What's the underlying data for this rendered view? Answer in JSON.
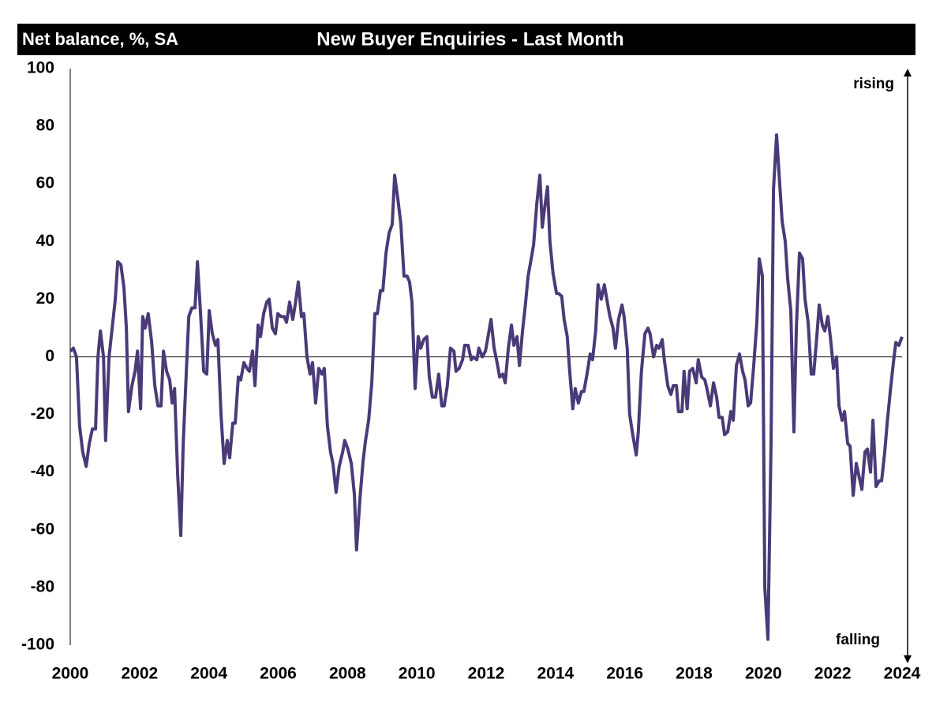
{
  "chart_data": {
    "type": "line",
    "title": "New Buyer Enquiries - Last Month",
    "subtitle": "Net balance, %, SA",
    "annotations": [
      "rising",
      "falling"
    ],
    "color": "#4b3a78",
    "xlim": [
      2000,
      2024
    ],
    "xticks": [
      2000,
      2002,
      2004,
      2006,
      2008,
      2010,
      2012,
      2014,
      2016,
      2018,
      2020,
      2022,
      2024
    ],
    "ylim": [
      -100,
      100
    ],
    "yticks": [
      -100,
      -80,
      -60,
      -40,
      -20,
      0,
      20,
      40,
      60,
      80,
      100
    ],
    "grid": false,
    "x": [
      2000.0,
      2000.09,
      2000.18,
      2000.27,
      2000.36,
      2000.46,
      2000.55,
      2000.64,
      2000.73,
      2000.8,
      2000.87,
      2000.96,
      2001.02,
      2001.12,
      2001.21,
      2001.3,
      2001.37,
      2001.46,
      2001.55,
      2001.62,
      2001.68,
      2001.78,
      2001.87,
      2001.94,
      2002.03,
      2002.09,
      2002.16,
      2002.25,
      2002.35,
      2002.44,
      2002.53,
      2002.62,
      2002.69,
      2002.78,
      2002.87,
      2002.94,
      2003.01,
      2003.1,
      2003.19,
      2003.26,
      2003.35,
      2003.42,
      2003.51,
      2003.6,
      2003.67,
      2003.76,
      2003.85,
      2003.94,
      2004.01,
      2004.1,
      2004.19,
      2004.26,
      2004.35,
      2004.44,
      2004.53,
      2004.6,
      2004.69,
      2004.76,
      2004.85,
      2004.92,
      2005.01,
      2005.1,
      2005.17,
      2005.26,
      2005.33,
      2005.42,
      2005.49,
      2005.58,
      2005.67,
      2005.74,
      2005.83,
      2005.92,
      2005.99,
      2006.08,
      2006.17,
      2006.24,
      2006.33,
      2006.42,
      2006.49,
      2006.58,
      2006.67,
      2006.74,
      2006.83,
      2006.92,
      2006.99,
      2007.08,
      2007.17,
      2007.26,
      2007.33,
      2007.42,
      2007.51,
      2007.58,
      2007.67,
      2007.76,
      2007.86,
      2007.92,
      2008.01,
      2008.11,
      2008.2,
      2008.26,
      2008.36,
      2008.45,
      2008.52,
      2008.61,
      2008.7,
      2008.79,
      2008.86,
      2008.95,
      2009.02,
      2009.11,
      2009.2,
      2009.29,
      2009.36,
      2009.45,
      2009.54,
      2009.63,
      2009.72,
      2009.79,
      2009.86,
      2009.95,
      2010.04,
      2010.11,
      2010.2,
      2010.29,
      2010.36,
      2010.45,
      2010.54,
      2010.63,
      2010.72,
      2010.79,
      2010.88,
      2010.97,
      2011.07,
      2011.13,
      2011.22,
      2011.32,
      2011.38,
      2011.48,
      2011.57,
      2011.63,
      2011.73,
      2011.79,
      2011.89,
      2011.98,
      2012.04,
      2012.14,
      2012.23,
      2012.3,
      2012.39,
      2012.48,
      2012.55,
      2012.64,
      2012.73,
      2012.8,
      2012.89,
      2012.96,
      2013.05,
      2013.14,
      2013.21,
      2013.3,
      2013.37,
      2013.46,
      2013.55,
      2013.62,
      2013.68,
      2013.77,
      2013.84,
      2013.93,
      2014.03,
      2014.09,
      2014.18,
      2014.25,
      2014.34,
      2014.41,
      2014.5,
      2014.57,
      2014.66,
      2014.75,
      2014.82,
      2014.91,
      2015.0,
      2015.07,
      2015.16,
      2015.23,
      2015.32,
      2015.41,
      2015.51,
      2015.57,
      2015.66,
      2015.73,
      2015.82,
      2015.92,
      2015.98,
      2016.07,
      2016.14,
      2016.23,
      2016.33,
      2016.39,
      2016.48,
      2016.58,
      2016.67,
      2016.73,
      2016.83,
      2016.92,
      2016.99,
      2017.08,
      2017.14,
      2017.24,
      2017.33,
      2017.4,
      2017.49,
      2017.55,
      2017.65,
      2017.71,
      2017.8,
      2017.87,
      2017.96,
      2018.06,
      2018.12,
      2018.22,
      2018.31,
      2018.37,
      2018.47,
      2018.56,
      2018.65,
      2018.72,
      2018.81,
      2018.88,
      2018.97,
      2019.06,
      2019.13,
      2019.22,
      2019.31,
      2019.4,
      2019.47,
      2019.56,
      2019.63,
      2019.72,
      2019.81,
      2019.88,
      2019.97,
      2020.04,
      2020.13,
      2020.22,
      2020.29,
      2020.38,
      2020.47,
      2020.54,
      2020.63,
      2020.7,
      2020.79,
      2020.88,
      2020.95,
      2021.04,
      2021.13,
      2021.2,
      2021.29,
      2021.38,
      2021.45,
      2021.54,
      2021.61,
      2021.7,
      2021.77,
      2021.86,
      2021.93,
      2022.02,
      2022.11,
      2022.18,
      2022.27,
      2022.34,
      2022.43,
      2022.5,
      2022.59,
      2022.68,
      2022.75,
      2022.84,
      2022.93,
      2023.0,
      2023.09,
      2023.16,
      2023.25,
      2023.34,
      2023.41,
      2023.5,
      2023.57,
      2023.66,
      2023.75,
      2023.82,
      2023.91,
      2024.0
    ],
    "values": [
      2,
      3,
      0,
      -24,
      -33,
      -38,
      -30,
      -25,
      -25,
      0,
      9,
      0,
      -29,
      0,
      10,
      20,
      33,
      32,
      24,
      10,
      -19,
      -10,
      -5,
      2,
      -18,
      14,
      10,
      15,
      5,
      -10,
      -17,
      -17,
      2,
      -5,
      -8,
      -16,
      -11,
      -41,
      -62,
      -30,
      -5,
      14,
      17,
      17,
      33,
      15,
      -5,
      -6,
      16,
      8,
      4,
      6,
      -20,
      -37,
      -29,
      -35,
      -23,
      -23,
      -7,
      -8,
      -2,
      -4,
      -5,
      2,
      -10,
      11,
      7,
      15,
      19,
      20,
      10,
      8,
      15,
      14,
      14,
      12,
      19,
      13,
      18,
      26,
      14,
      15,
      0,
      -6,
      -2,
      -16,
      -4,
      -6,
      -4,
      -24,
      -33,
      -37,
      -47,
      -38,
      -33,
      -29,
      -32,
      -37,
      -48,
      -67,
      -49,
      -36,
      -29,
      -22,
      -9,
      15,
      15,
      23,
      23,
      36,
      43,
      46,
      63,
      55,
      46,
      28,
      28,
      26,
      19,
      -11,
      7,
      3,
      6,
      7,
      -7,
      -14,
      -14,
      -6,
      -17,
      -17,
      -10,
      3,
      2,
      -5,
      -4,
      -1,
      4,
      4,
      -1,
      0,
      -1,
      3,
      0,
      2,
      6,
      13,
      3,
      -1,
      -7,
      -6,
      -9,
      3,
      11,
      4,
      7,
      -3,
      9,
      19,
      28,
      34,
      39,
      53,
      63,
      45,
      51,
      59,
      40,
      29,
      22,
      22,
      21,
      13,
      7,
      -5,
      -18,
      -11,
      -16,
      -12,
      -12,
      -6,
      1,
      -1,
      9,
      25,
      20,
      25,
      18,
      14,
      10,
      3,
      13,
      18,
      14,
      3,
      -20,
      -27,
      -34,
      -26,
      -5,
      8,
      10,
      8,
      0,
      4,
      3,
      6,
      -1,
      -10,
      -13,
      -10,
      -10,
      -19,
      -19,
      -5,
      -18,
      -5,
      -4,
      -9,
      -1,
      -7,
      -8,
      -11,
      -17,
      -9,
      -14,
      -21,
      -21,
      -27,
      -26,
      -19,
      -22,
      -3,
      1,
      -5,
      -8,
      -17,
      -16,
      -3,
      12,
      34,
      28,
      -80,
      -98,
      -30,
      58,
      77,
      60,
      47,
      40,
      27,
      16,
      -26,
      10,
      36,
      34,
      20,
      12,
      -6,
      -6,
      7,
      18,
      11,
      9,
      14,
      7,
      -4,
      0,
      -17,
      -22,
      -19,
      -30,
      -31,
      -48,
      -37,
      -41,
      -46,
      -33,
      -32,
      -40,
      -22,
      -45,
      -43,
      -43,
      -33,
      -23,
      -12,
      -2,
      5,
      4,
      7
    ]
  }
}
